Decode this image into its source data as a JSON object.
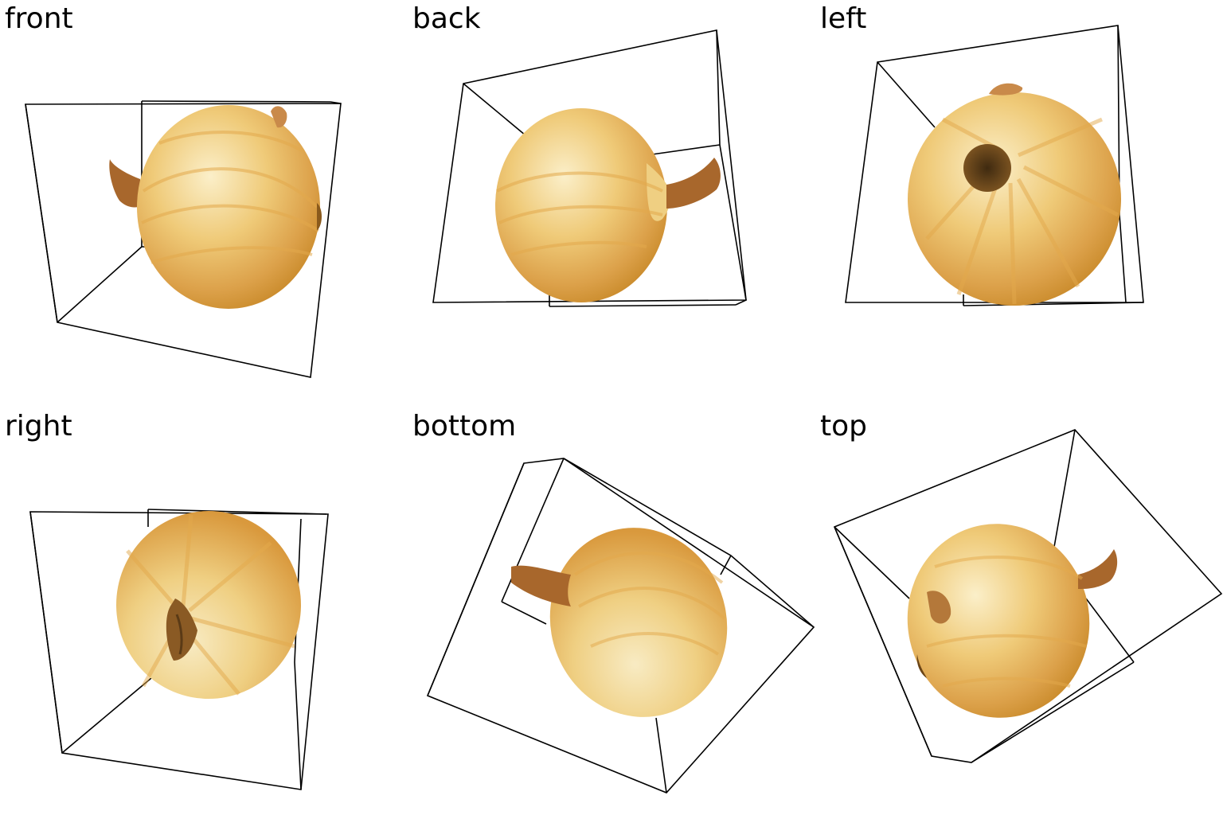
{
  "views": [
    {
      "label": "front"
    },
    {
      "label": "back"
    },
    {
      "label": "left"
    },
    {
      "label": "right"
    },
    {
      "label": "bottom"
    },
    {
      "label": "top"
    }
  ],
  "colors": {
    "onion_light": "#f6e2a8",
    "onion_mid": "#e9b552",
    "onion_dark": "#c98a2a",
    "stem": "#a8672c",
    "root": "#5a3a16",
    "box_line": "#000000",
    "background": "#ffffff"
  }
}
